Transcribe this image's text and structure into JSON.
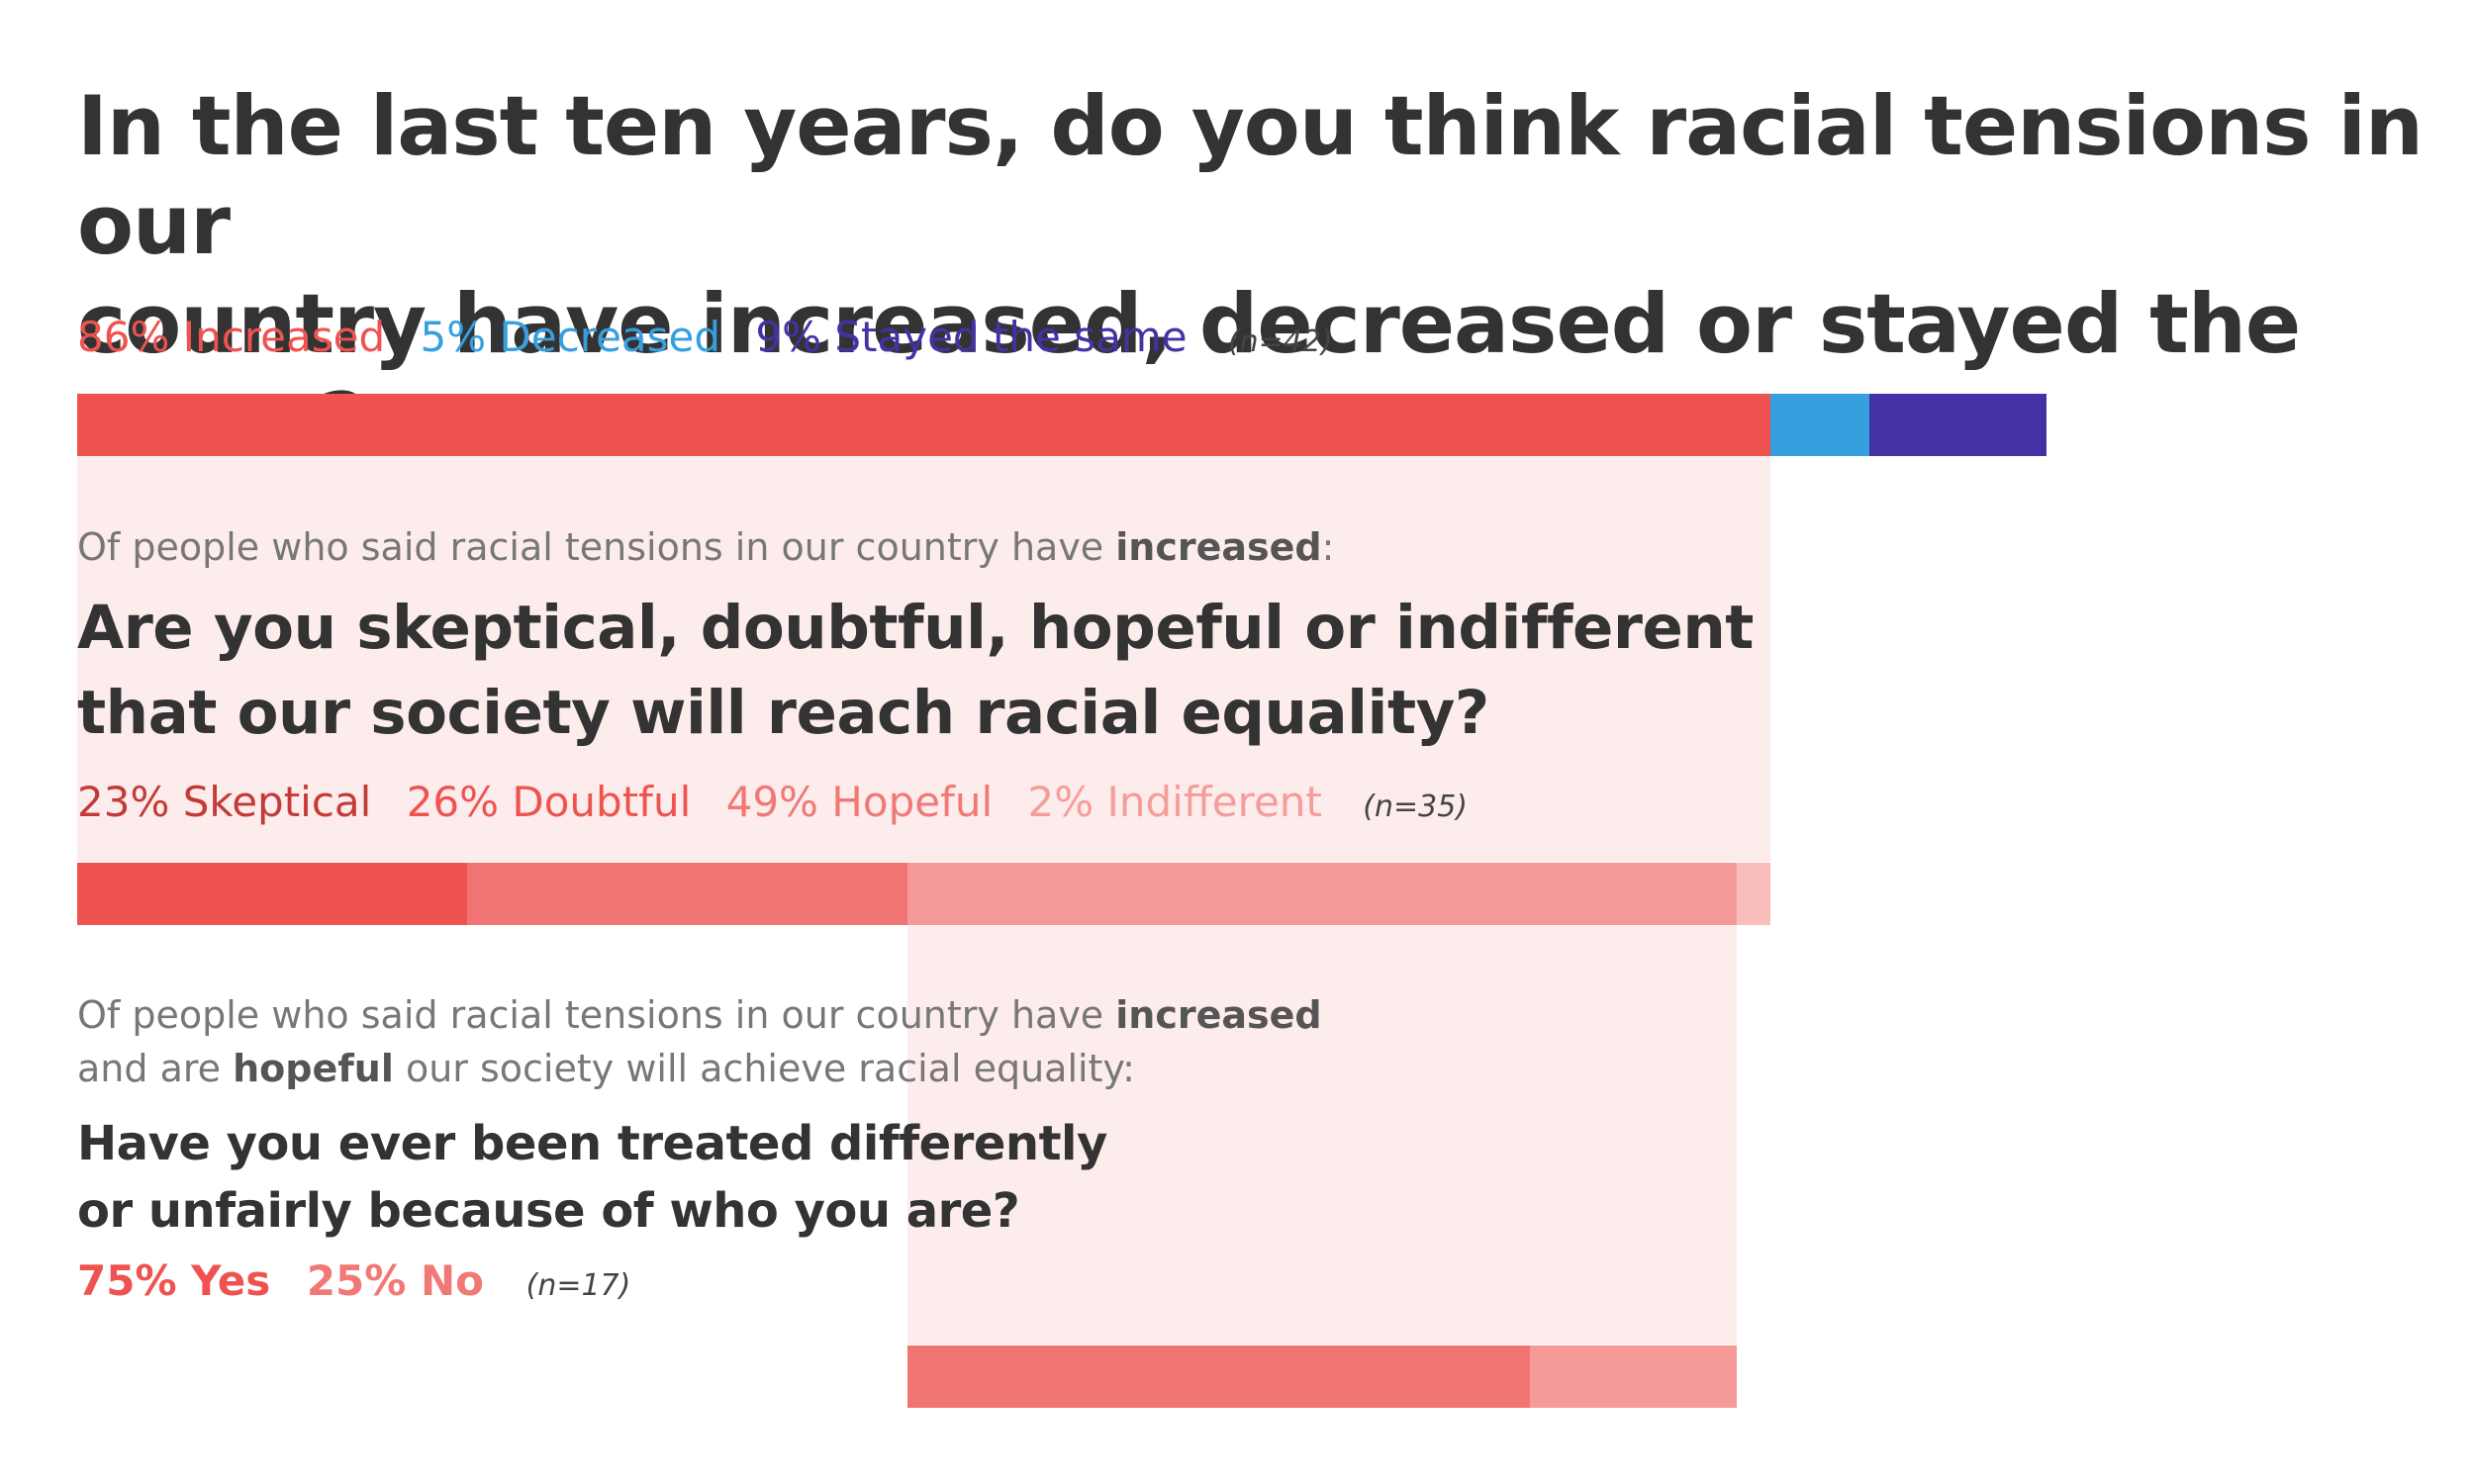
{
  "title_lines": [
    "In the last ten years, do you think racial tensions in our",
    "country have increased, decreased or stayed the same?"
  ],
  "colors": {
    "increased": "#ee5350",
    "decreased": "#36a0df",
    "stayed_the_same": "#4232a5",
    "skeptical": "#c33b38",
    "doubtful": "#ee5350",
    "hopeful": "#f07976",
    "indifferent": "#f59d9a",
    "panel": "#fdecec",
    "bar_increased": "#ee5350",
    "bar_skeptical": "#ee5350",
    "bar_doubtful": "#f07471",
    "bar_hopeful": "#f59a98",
    "bar_indifferent": "#f9bdbb",
    "bar_yes": "#f07471",
    "bar_no": "#f59a98"
  },
  "q1": {
    "legend": [
      {
        "label": "86% Increased",
        "color": "#ee5350"
      },
      {
        "label": "5% Decreased",
        "color": "#36a0df"
      },
      {
        "label": "9% Stayed the same",
        "color": "#4232a5"
      }
    ],
    "n": "(n=42)"
  },
  "q2": {
    "intro_prefix": "Of people who said racial tensions in our country have ",
    "intro_bold": "increased",
    "intro_suffix": ":",
    "question_lines": [
      "Are you skeptical, doubtful, hopeful or indifferent",
      "that our society will reach racial equality?"
    ],
    "legend": [
      {
        "label": "23% Skeptical",
        "color": "#c33b38"
      },
      {
        "label": "26% Doubtful",
        "color": "#ee5350"
      },
      {
        "label": "49% Hopeful",
        "color": "#f07976"
      },
      {
        "label": "2% Indifferent",
        "color": "#f59d9a"
      }
    ],
    "n": "(n=35)"
  },
  "q3": {
    "intro_line1_prefix": "Of people who said racial tensions in our country have ",
    "intro_line1_bold": "increased",
    "intro_line2_prefix": "and are ",
    "intro_line2_bold": "hopeful",
    "intro_line2_suffix": " our society will achieve racial equality:",
    "question_lines": [
      "Have you ever been treated differently",
      "or unfairly because of who you are?"
    ],
    "legend": [
      {
        "label": "75% Yes",
        "color": "#ee5350"
      },
      {
        "label": "25% No",
        "color": "#f07976"
      }
    ],
    "n": "(n=17)"
  },
  "chart_data": [
    {
      "type": "bar",
      "stacked": true,
      "title": "In the last ten years, do you think racial tensions in our country have increased, decreased or stayed the same?",
      "categories": [
        "Increased",
        "Decreased",
        "Stayed the same"
      ],
      "values": [
        86,
        5,
        9
      ],
      "unit": "%",
      "n": 42
    },
    {
      "type": "bar",
      "stacked": true,
      "title": "Are you skeptical, doubtful, hopeful or indifferent that our society will reach racial equality?",
      "categories": [
        "Skeptical",
        "Doubtful",
        "Hopeful",
        "Indifferent"
      ],
      "values": [
        23,
        26,
        49,
        2
      ],
      "unit": "%",
      "n": 35
    },
    {
      "type": "bar",
      "stacked": true,
      "title": "Have you ever been treated differently or unfairly because of who you are?",
      "categories": [
        "Yes",
        "No"
      ],
      "values": [
        75,
        25
      ],
      "unit": "%",
      "n": 17
    }
  ]
}
